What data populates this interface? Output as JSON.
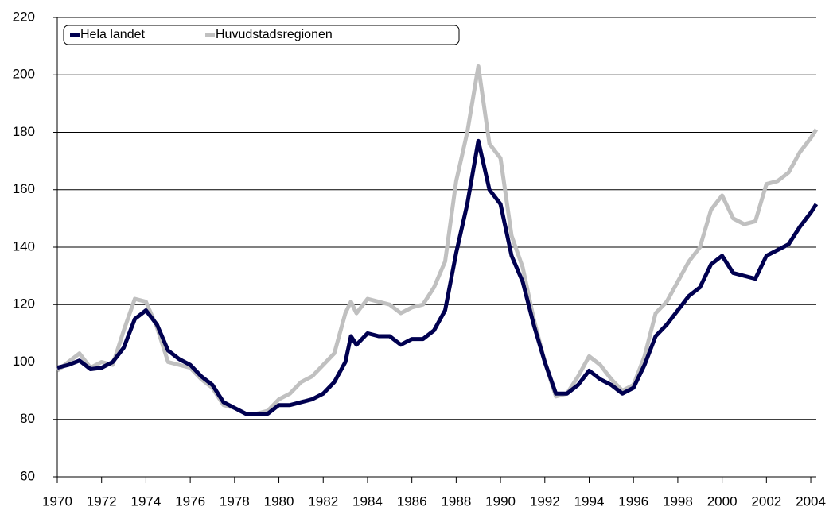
{
  "chart_data": {
    "type": "line",
    "x": [
      1970,
      1970.5,
      1971,
      1971.5,
      1972,
      1972.5,
      1973,
      1973.5,
      1974,
      1974.5,
      1975,
      1975.5,
      1976,
      1976.5,
      1977,
      1977.5,
      1978,
      1978.5,
      1979,
      1979.5,
      1980,
      1980.5,
      1981,
      1981.5,
      1982,
      1982.5,
      1983,
      1983.25,
      1983.5,
      1984,
      1984.5,
      1985,
      1985.5,
      1986,
      1986.5,
      1987,
      1987.5,
      1988,
      1988.5,
      1989,
      1989.5,
      1990,
      1990.5,
      1991,
      1991.5,
      1992,
      1992.5,
      1993,
      1993.5,
      1994,
      1994.5,
      1995,
      1995.5,
      1996,
      1996.5,
      1997,
      1997.5,
      1998,
      1998.5,
      1999,
      1999.5,
      2000,
      2000.5,
      2001,
      2001.5,
      2002,
      2002.5,
      2003,
      2003.5,
      2004,
      2004.25
    ],
    "series": [
      {
        "name": "Huvudstadsregionen",
        "color": "#c0c0c0",
        "values": [
          97,
          100,
          103,
          98,
          100,
          99,
          111,
          122,
          121,
          112,
          100,
          99,
          98,
          94,
          91,
          85,
          84,
          82,
          82,
          83,
          87,
          89,
          93,
          95,
          99,
          103,
          117,
          121,
          117,
          122,
          121,
          120,
          117,
          119,
          120,
          126,
          135,
          163,
          180,
          203,
          176,
          171,
          144,
          133,
          115,
          100,
          88,
          89,
          95,
          102,
          99,
          94,
          90,
          92,
          102,
          117,
          121,
          128,
          135,
          140,
          153,
          158,
          150,
          148,
          149,
          162,
          163,
          166,
          173,
          178,
          181
        ]
      },
      {
        "name": "Hela landet",
        "color": "#000050",
        "values": [
          98,
          99,
          100.5,
          97.5,
          98,
          100,
          105,
          115,
          118,
          113,
          104,
          101,
          99,
          95,
          92,
          86,
          84,
          82,
          82,
          82,
          85,
          85,
          86,
          87,
          89,
          93,
          100,
          109,
          106,
          110,
          109,
          109,
          106,
          108,
          108,
          111,
          118,
          138,
          155,
          177,
          160,
          155,
          137,
          128,
          113,
          100,
          89,
          89,
          92,
          97,
          94,
          92,
          89,
          91,
          99,
          109,
          113,
          118,
          123,
          126,
          134,
          137,
          131,
          130,
          129,
          137,
          139,
          141,
          147,
          152,
          155
        ]
      }
    ],
    "legend_order": [
      1,
      0
    ],
    "xlim": [
      1970,
      2004.25
    ],
    "xticks": [
      1970,
      1972,
      1974,
      1976,
      1978,
      1980,
      1982,
      1984,
      1986,
      1988,
      1990,
      1992,
      1994,
      1996,
      1998,
      2000,
      2002,
      2004
    ],
    "ylim": [
      60,
      220
    ],
    "yticks": [
      60,
      80,
      100,
      120,
      140,
      160,
      180,
      200,
      220
    ],
    "grid": true,
    "legend": "top-left"
  }
}
